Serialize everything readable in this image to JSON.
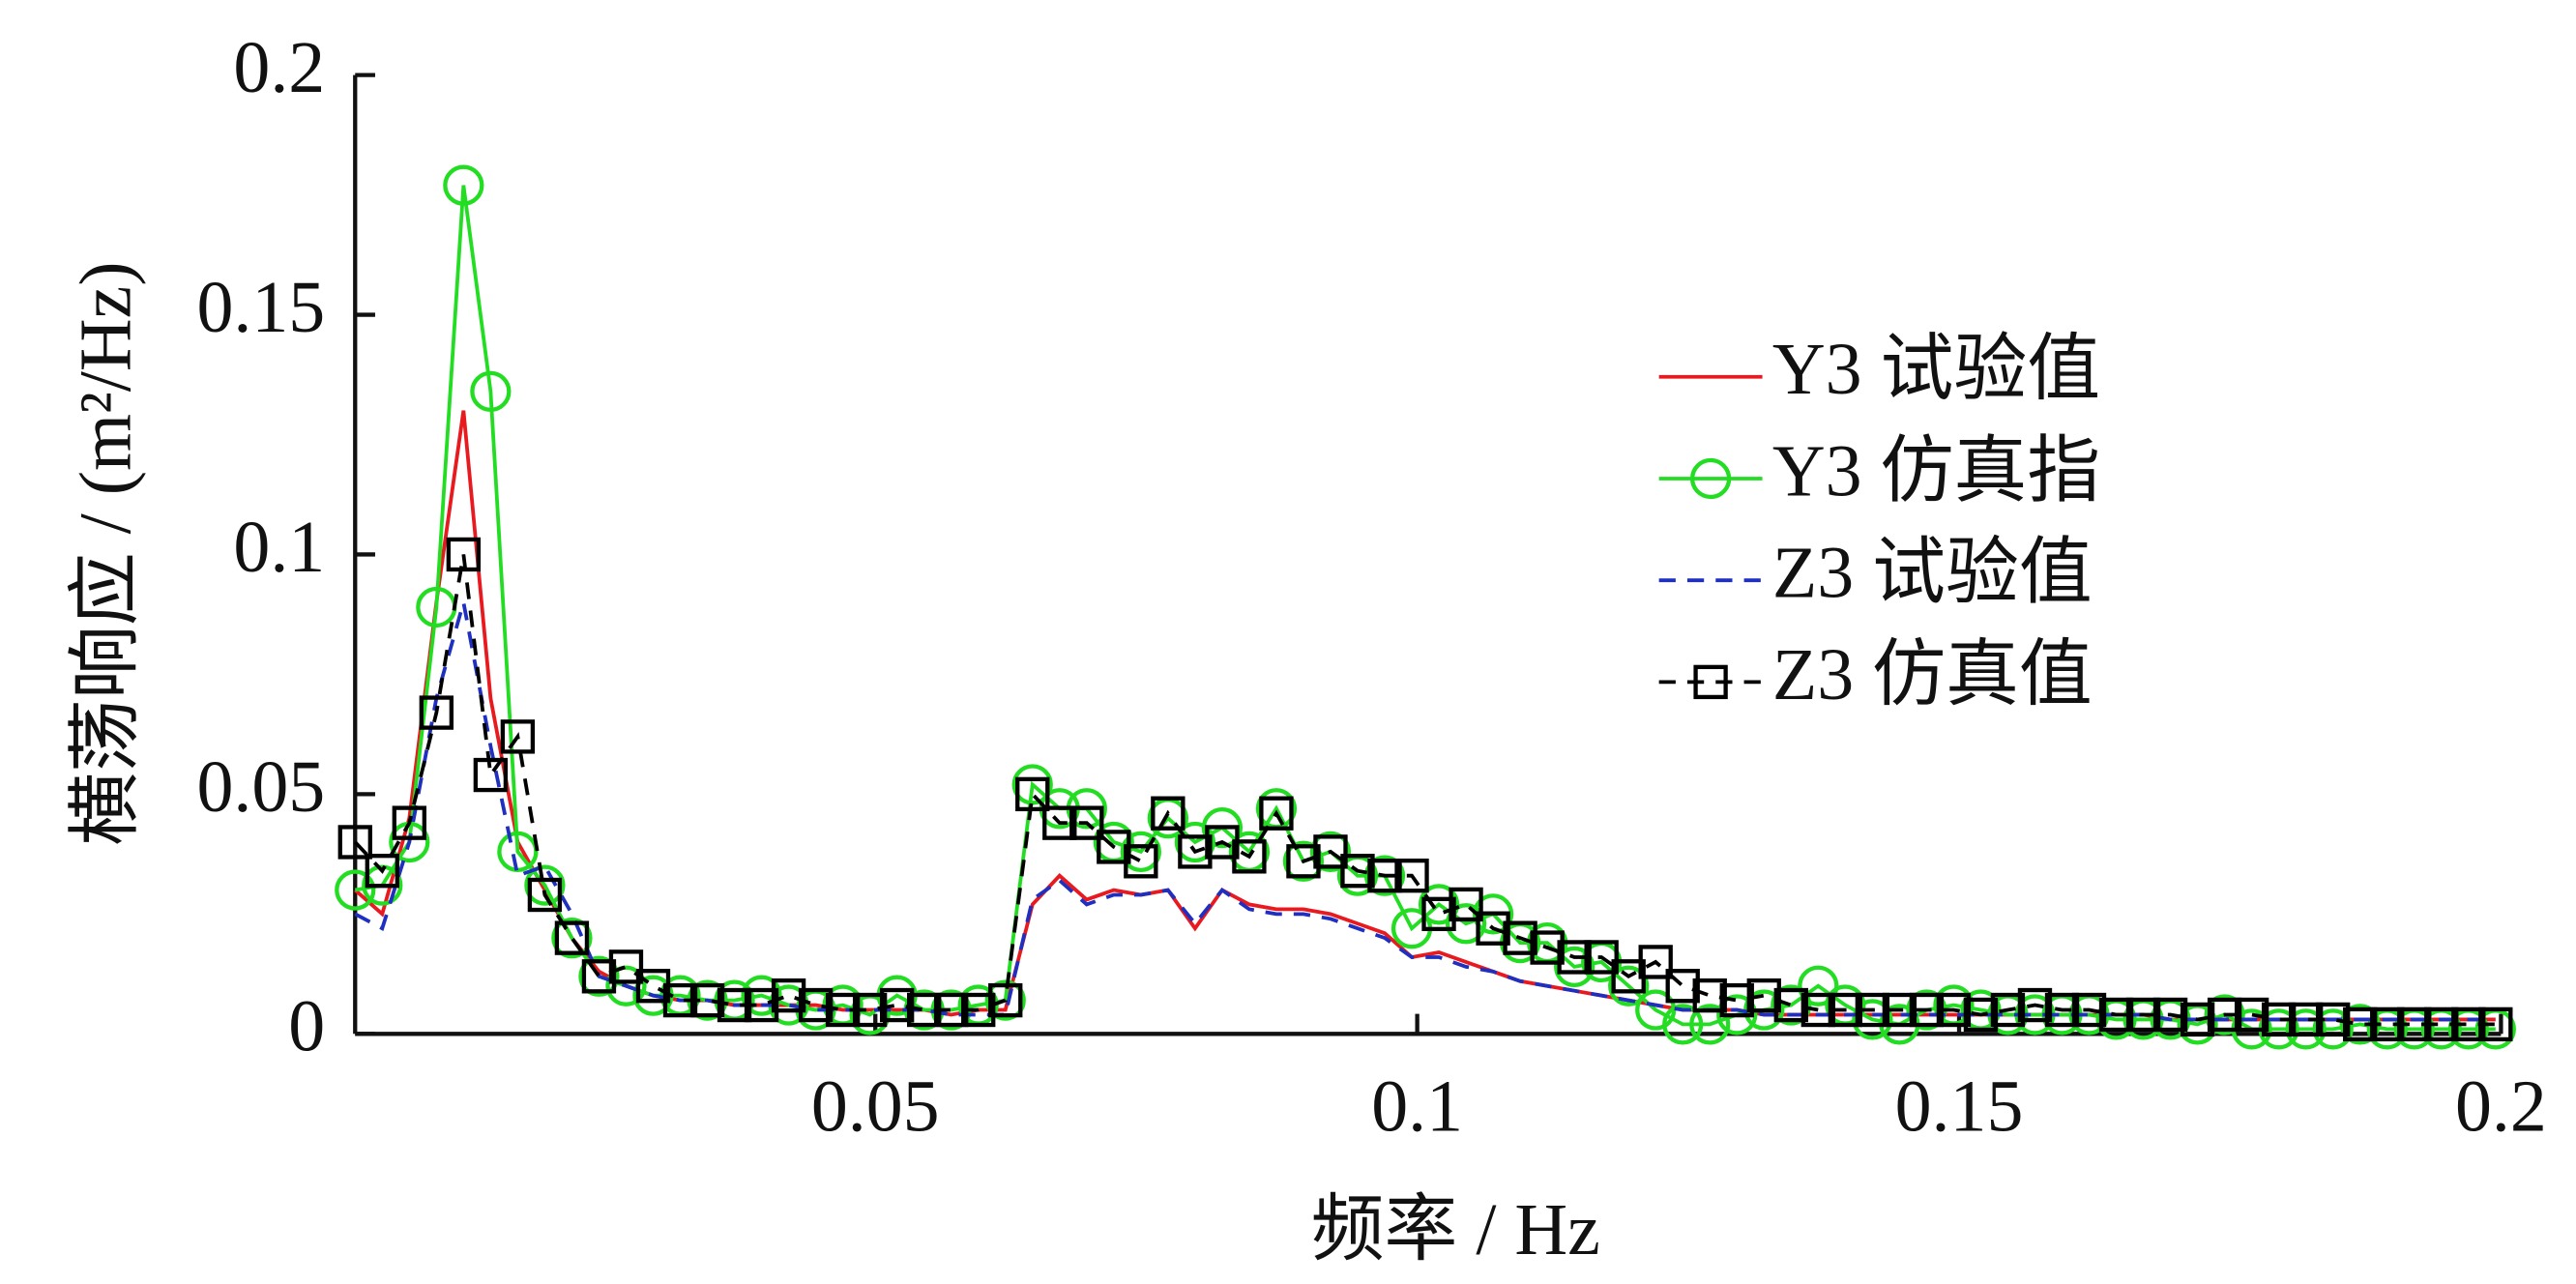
{
  "chart_data": {
    "type": "line",
    "xlabel": "频率 / Hz",
    "ylabel": "横荡响应 / (m²/Hz)",
    "xlim": [
      0.002,
      0.2
    ],
    "ylim": [
      0,
      0.2
    ],
    "xticks": [
      0.05,
      0.1,
      0.15,
      0.2
    ],
    "yticks": [
      0,
      0.05,
      0.1,
      0.15,
      0.2
    ],
    "legend": "upper right",
    "x": [
      0.002,
      0.0045,
      0.007,
      0.0095,
      0.012,
      0.0145,
      0.017,
      0.0195,
      0.022,
      0.0245,
      0.027,
      0.0295,
      0.032,
      0.0345,
      0.037,
      0.0395,
      0.042,
      0.0445,
      0.047,
      0.0495,
      0.052,
      0.0545,
      0.057,
      0.0595,
      0.062,
      0.0645,
      0.067,
      0.0695,
      0.072,
      0.0745,
      0.077,
      0.0795,
      0.082,
      0.0845,
      0.087,
      0.0895,
      0.092,
      0.0945,
      0.097,
      0.0995,
      0.102,
      0.1045,
      0.107,
      0.1095,
      0.112,
      0.1145,
      0.117,
      0.1195,
      0.122,
      0.1245,
      0.127,
      0.1295,
      0.132,
      0.1345,
      0.137,
      0.1395,
      0.142,
      0.1445,
      0.147,
      0.1495,
      0.152,
      0.1545,
      0.157,
      0.1595,
      0.162,
      0.1645,
      0.167,
      0.1695,
      0.172,
      0.1745,
      0.177,
      0.1795,
      0.182,
      0.1845,
      0.187,
      0.1895,
      0.192,
      0.1945,
      0.197,
      0.1995
    ],
    "series": [
      {
        "name": "Y3 试验值",
        "color": "#e8191f",
        "linestyle": "solid",
        "marker": "none",
        "values": [
          0.03,
          0.025,
          0.045,
          0.09,
          0.13,
          0.07,
          0.04,
          0.03,
          0.02,
          0.013,
          0.01,
          0.008,
          0.007,
          0.007,
          0.006,
          0.006,
          0.006,
          0.006,
          0.005,
          0.005,
          0.005,
          0.005,
          0.004,
          0.005,
          0.005,
          0.027,
          0.033,
          0.028,
          0.03,
          0.029,
          0.03,
          0.022,
          0.03,
          0.027,
          0.026,
          0.026,
          0.025,
          0.023,
          0.021,
          0.016,
          0.017,
          0.015,
          0.013,
          0.011,
          0.01,
          0.009,
          0.008,
          0.007,
          0.006,
          0.005,
          0.005,
          0.005,
          0.004,
          0.004,
          0.004,
          0.004,
          0.004,
          0.004,
          0.004,
          0.004,
          0.004,
          0.004,
          0.004,
          0.004,
          0.004,
          0.004,
          0.004,
          0.003,
          0.003,
          0.003,
          0.003,
          0.003,
          0.003,
          0.003,
          0.003,
          0.003,
          0.003,
          0.003,
          0.003,
          0.003
        ]
      },
      {
        "name": "Y3 仿真指",
        "color": "#22dd22",
        "linestyle": "solid",
        "marker": "circle",
        "values": [
          0.03,
          0.031,
          0.04,
          0.089,
          0.177,
          0.134,
          0.038,
          0.031,
          0.02,
          0.012,
          0.01,
          0.008,
          0.008,
          0.007,
          0.007,
          0.008,
          0.006,
          0.005,
          0.006,
          0.004,
          0.008,
          0.005,
          0.005,
          0.006,
          0.007,
          0.052,
          0.047,
          0.047,
          0.04,
          0.038,
          0.045,
          0.04,
          0.043,
          0.038,
          0.047,
          0.036,
          0.038,
          0.033,
          0.033,
          0.022,
          0.027,
          0.023,
          0.025,
          0.019,
          0.019,
          0.014,
          0.015,
          0.01,
          0.005,
          0.002,
          0.002,
          0.004,
          0.005,
          0.006,
          0.01,
          0.006,
          0.003,
          0.002,
          0.005,
          0.006,
          0.005,
          0.004,
          0.004,
          0.004,
          0.004,
          0.003,
          0.003,
          0.003,
          0.002,
          0.004,
          0.001,
          0.001,
          0.001,
          0.001,
          0.002,
          0.001,
          0.001,
          0.001,
          0.001,
          0.001
        ]
      },
      {
        "name": "Z3 试验值",
        "color": "#1f2fbf",
        "linestyle": "dashed",
        "marker": "none",
        "values": [
          0.025,
          0.022,
          0.04,
          0.07,
          0.09,
          0.06,
          0.033,
          0.035,
          0.025,
          0.012,
          0.01,
          0.008,
          0.007,
          0.007,
          0.006,
          0.006,
          0.006,
          0.005,
          0.005,
          0.005,
          0.005,
          0.005,
          0.004,
          0.004,
          0.004,
          0.028,
          0.032,
          0.027,
          0.029,
          0.029,
          0.03,
          0.023,
          0.03,
          0.026,
          0.025,
          0.025,
          0.024,
          0.022,
          0.02,
          0.016,
          0.016,
          0.014,
          0.013,
          0.011,
          0.01,
          0.009,
          0.008,
          0.007,
          0.006,
          0.005,
          0.005,
          0.005,
          0.004,
          0.004,
          0.004,
          0.004,
          0.004,
          0.004,
          0.004,
          0.004,
          0.004,
          0.004,
          0.004,
          0.004,
          0.004,
          0.004,
          0.004,
          0.003,
          0.003,
          0.003,
          0.003,
          0.003,
          0.003,
          0.003,
          0.003,
          0.003,
          0.003,
          0.003,
          0.003,
          0.003
        ]
      },
      {
        "name": "Z3 仿真值",
        "color": "#000000",
        "linestyle": "dashed",
        "marker": "square",
        "values": [
          0.04,
          0.034,
          0.044,
          0.067,
          0.1,
          0.054,
          0.062,
          0.029,
          0.02,
          0.012,
          0.014,
          0.01,
          0.007,
          0.007,
          0.006,
          0.006,
          0.008,
          0.006,
          0.005,
          0.005,
          0.006,
          0.005,
          0.005,
          0.005,
          0.007,
          0.05,
          0.044,
          0.044,
          0.039,
          0.036,
          0.046,
          0.038,
          0.04,
          0.037,
          0.046,
          0.036,
          0.038,
          0.034,
          0.033,
          0.033,
          0.025,
          0.027,
          0.022,
          0.02,
          0.018,
          0.016,
          0.016,
          0.012,
          0.015,
          0.01,
          0.008,
          0.007,
          0.008,
          0.006,
          0.005,
          0.005,
          0.005,
          0.005,
          0.005,
          0.005,
          0.004,
          0.005,
          0.006,
          0.005,
          0.005,
          0.004,
          0.004,
          0.004,
          0.003,
          0.004,
          0.004,
          0.003,
          0.003,
          0.003,
          0.002,
          0.002,
          0.002,
          0.002,
          0.002,
          0.002
        ]
      }
    ]
  }
}
